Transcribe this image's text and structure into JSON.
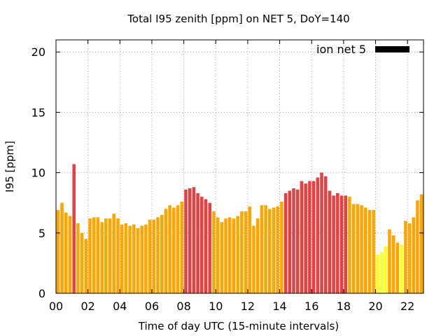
{
  "chart_data": {
    "type": "bar",
    "title": "Total I95 zenith [ppm] on NET 5, DoY=140",
    "xlabel": "Time of day UTC (15-minute intervals)",
    "ylabel": "I95 [ppm]",
    "xlim": [
      0,
      23
    ],
    "ylim": [
      0,
      21
    ],
    "x_ticks": [
      0,
      2,
      4,
      6,
      8,
      10,
      12,
      14,
      16,
      18,
      20,
      22
    ],
    "x_tick_labels": [
      "00",
      "02",
      "04",
      "06",
      "08",
      "10",
      "12",
      "14",
      "16",
      "18",
      "20",
      "22"
    ],
    "y_ticks": [
      0,
      5,
      10,
      15,
      20
    ],
    "y_tick_labels": [
      "0",
      "5",
      "10",
      "15",
      "20"
    ],
    "grid": true,
    "legend_position": "top-right",
    "legend": [
      {
        "label": "ion net 5",
        "color": "#000000"
      }
    ],
    "interval_hours": 0.25,
    "colors": {
      "orange": "#FFA500",
      "red": "#E84040",
      "yellow": "#FFFF20"
    },
    "values": [
      6.9,
      7.5,
      6.7,
      6.4,
      10.7,
      5.8,
      5.0,
      4.5,
      6.2,
      6.3,
      6.3,
      5.9,
      6.2,
      6.2,
      6.6,
      6.2,
      5.7,
      5.8,
      5.6,
      5.7,
      5.4,
      5.6,
      5.7,
      6.1,
      6.1,
      6.3,
      6.5,
      7.0,
      7.3,
      7.1,
      7.3,
      7.6,
      8.6,
      8.7,
      8.8,
      8.3,
      8.0,
      7.8,
      7.5,
      6.8,
      6.3,
      5.9,
      6.2,
      6.3,
      6.2,
      6.4,
      6.8,
      6.8,
      7.2,
      5.6,
      6.2,
      7.3,
      7.3,
      7.0,
      7.1,
      7.2,
      7.6,
      8.3,
      8.5,
      8.7,
      8.6,
      9.3,
      9.1,
      9.3,
      9.3,
      9.6,
      10.0,
      9.7,
      8.5,
      8.1,
      8.3,
      8.1,
      8.1,
      8.0,
      7.4,
      7.4,
      7.3,
      7.1,
      6.9,
      6.9,
      3.2,
      3.4,
      3.9,
      5.3,
      4.8,
      4.2,
      4.0,
      6.0,
      5.8,
      6.3,
      7.7,
      8.2
    ],
    "bar_colors": [
      "orange",
      "orange",
      "orange",
      "orange",
      "red",
      "orange",
      "orange",
      "orange",
      "orange",
      "orange",
      "orange",
      "orange",
      "orange",
      "orange",
      "orange",
      "orange",
      "orange",
      "orange",
      "orange",
      "orange",
      "orange",
      "orange",
      "orange",
      "orange",
      "orange",
      "orange",
      "orange",
      "orange",
      "orange",
      "orange",
      "orange",
      "orange",
      "red",
      "red",
      "red",
      "red",
      "red",
      "red",
      "red",
      "orange",
      "orange",
      "orange",
      "orange",
      "orange",
      "orange",
      "orange",
      "orange",
      "orange",
      "orange",
      "orange",
      "orange",
      "orange",
      "orange",
      "orange",
      "orange",
      "orange",
      "orange",
      "red",
      "red",
      "red",
      "red",
      "red",
      "red",
      "red",
      "red",
      "red",
      "red",
      "red",
      "red",
      "red",
      "red",
      "red",
      "red",
      "orange",
      "orange",
      "orange",
      "orange",
      "orange",
      "orange",
      "orange",
      "yellow",
      "yellow",
      "yellow",
      "orange",
      "orange",
      "orange",
      "yellow",
      "orange",
      "orange",
      "orange",
      "orange",
      "orange"
    ]
  }
}
